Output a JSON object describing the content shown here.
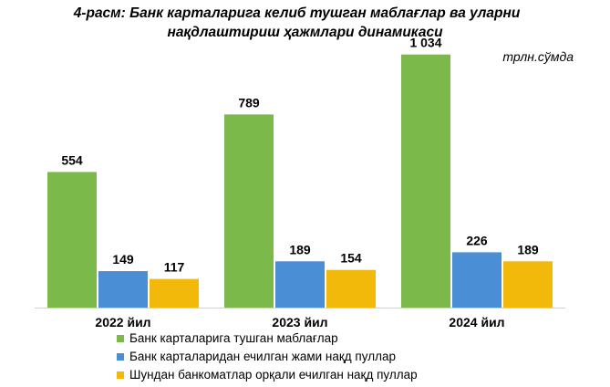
{
  "title": {
    "line1": "4-расм: Банк карталарига келиб тушган маблағлар ва уларни",
    "line2": "нақдлаштириш ҳажмлари динамикаси"
  },
  "unit_label": "трлн.сўмда",
  "chart_data": {
    "type": "bar",
    "categories": [
      "2022 йил",
      "2023 йил",
      "2024 йил"
    ],
    "series": [
      {
        "name": "Банк карталарига тушган маблағлар",
        "values": [
          554,
          789,
          1034
        ],
        "labels": [
          "554",
          "789",
          "1 034"
        ],
        "color": "#7cb94b"
      },
      {
        "name": "Банк карталаридан ечилган жами нақд пуллар",
        "values": [
          149,
          189,
          226
        ],
        "labels": [
          "149",
          "189",
          "226"
        ],
        "color": "#4a8fd6"
      },
      {
        "name": "Шундан банкоматлар орқали ечилган нақд пуллар",
        "values": [
          117,
          154,
          189
        ],
        "labels": [
          "117",
          "154",
          "189"
        ],
        "color": "#f2b80a"
      }
    ],
    "ylim": [
      0,
      1100
    ],
    "grid": false,
    "legend_position": "bottom"
  }
}
